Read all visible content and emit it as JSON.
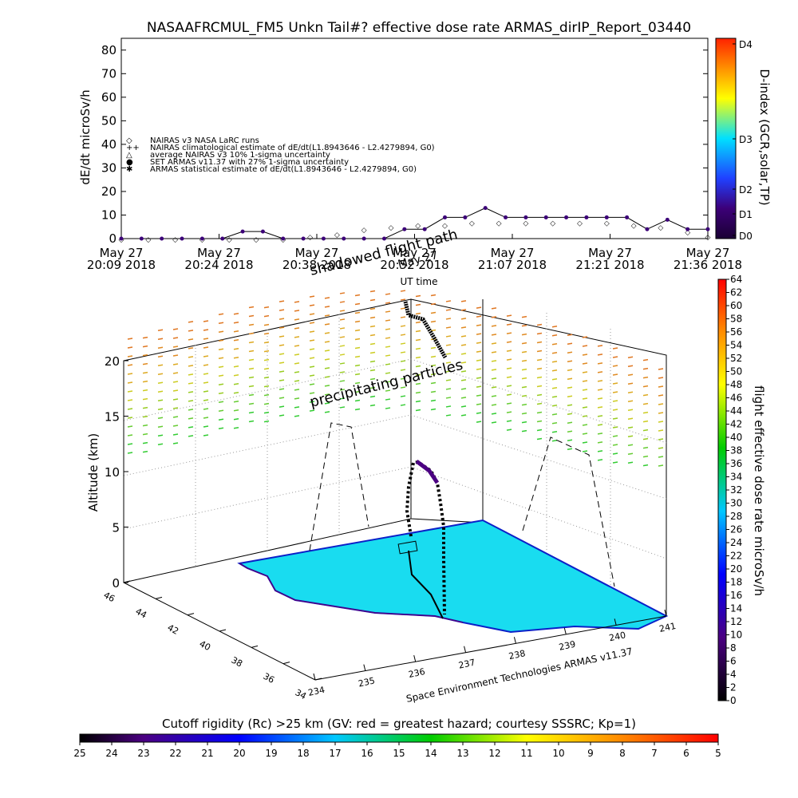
{
  "title": "NASAAFRCMUL_FM5 Unkn Tail#? effective dose rate ARMAS_dirIP_Report_03440",
  "top_panel": {
    "ylabel": "dE/dt microSv/h",
    "yticks": [
      "0",
      "10",
      "20",
      "30",
      "40",
      "50",
      "60",
      "70",
      "80"
    ],
    "xticks": [
      {
        "date": "May 27",
        "time": "20:09 2018"
      },
      {
        "date": "May 27",
        "time": "20:24 2018"
      },
      {
        "date": "May 27",
        "time": "20:38 2018"
      },
      {
        "date": "May 27",
        "time": "20:52 2018"
      },
      {
        "date": "May 27",
        "time": "21:07 2018"
      },
      {
        "date": "May 27",
        "time": "21:21 2018"
      },
      {
        "date": "May 27",
        "time": "21:36 2018"
      }
    ],
    "xlabel": "UT time",
    "legend": [
      {
        "symbol": "◇",
        "text": "NAIRAS v3 NASA LaRC runs"
      },
      {
        "symbol": "++",
        "text": "NAIRAS climatological estimate of dE/dt(L1.8943646 - L2.4279894, G0)"
      },
      {
        "symbol": "△",
        "text": "average NAIRAS v3 10% 1-sigma uncertainty"
      },
      {
        "symbol": "●",
        "text": "SET ARMAS v11.37 with 27% 1-sigma uncertainty"
      },
      {
        "symbol": "✱",
        "text": "ARMAS statistical estimate of dE/dt(L1.8943646 - L2.4279894, G0)"
      }
    ],
    "right_axis": {
      "label": "D-index (GCR,solar,TP)",
      "ticks": [
        "D0",
        "D1",
        "D2",
        "D3",
        "D4"
      ]
    }
  },
  "overlay_text": {
    "shadowed": "shadowed flight path",
    "date_fragment": "May 27",
    "precipitating": "precipitating particles"
  },
  "main_panel": {
    "zlabel": "Altitude (km)",
    "zticks": [
      "0",
      "5",
      "10",
      "15",
      "20"
    ],
    "lat_ticks": [
      "46",
      "44",
      "42",
      "40",
      "38",
      "36",
      "34"
    ],
    "lon_ticks": [
      "234",
      "235",
      "236",
      "237",
      "238",
      "239",
      "240",
      "241"
    ],
    "credit": "Space Environment Technologies ARMAS v11.37"
  },
  "dose_colorbar": {
    "label": "flight effective dose rate microSv/h",
    "ticks": [
      "0",
      "2",
      "4",
      "6",
      "8",
      "10",
      "12",
      "14",
      "16",
      "18",
      "20",
      "22",
      "24",
      "26",
      "28",
      "30",
      "32",
      "34",
      "36",
      "38",
      "40",
      "42",
      "44",
      "46",
      "48",
      "50",
      "52",
      "54",
      "56",
      "58",
      "60",
      "62",
      "64"
    ]
  },
  "rc_colorbar": {
    "label": "Cutoff rigidity (Rc) >25 km (GV: red = greatest hazard; courtesy SSSRC; Kp=1)",
    "ticks": [
      "25",
      "24",
      "23",
      "22",
      "21",
      "20",
      "19",
      "18",
      "17",
      "16",
      "15",
      "14",
      "13",
      "12",
      "11",
      "10",
      "9",
      "8",
      "7",
      "6",
      "5"
    ]
  },
  "chart_data": {
    "type": "line",
    "title": "NASAAFRCMUL_FM5 Unkn Tail#? effective dose rate ARMAS_dirIP_Report_03440",
    "xlabel": "UT time",
    "ylabel": "dE/dt microSv/h",
    "ylim": [
      0,
      85
    ],
    "xlim_minutes_after_2009": [
      0,
      87
    ],
    "series": [
      {
        "name": "SET ARMAS v11.37 with 27% 1-sigma uncertainty",
        "x_minutes": [
          0,
          3,
          6,
          9,
          12,
          15,
          18,
          21,
          24,
          27,
          30,
          33,
          36,
          39,
          42,
          45,
          48,
          51,
          54,
          57,
          60,
          63,
          66,
          69,
          72,
          75,
          78,
          81,
          84,
          87
        ],
        "values": [
          0,
          0,
          0,
          0,
          0,
          0,
          3,
          3,
          0,
          0,
          0,
          0,
          0,
          0,
          4,
          4,
          9,
          9,
          13,
          9,
          9,
          9,
          9,
          9,
          9,
          9,
          4,
          8,
          4,
          4
        ]
      },
      {
        "name": "NAIRAS v3 NASA LaRC runs",
        "x_minutes": [
          0,
          4,
          8,
          12,
          16,
          20,
          24,
          28,
          32,
          36,
          40,
          44,
          48,
          52,
          56,
          60,
          64,
          68,
          72,
          76,
          80,
          84,
          87
        ],
        "values": [
          0,
          0,
          0,
          0,
          0,
          0,
          0,
          1,
          2,
          4,
          5,
          6,
          6,
          7,
          7,
          7,
          7,
          7,
          7,
          6,
          5,
          3,
          1
        ]
      }
    ]
  }
}
